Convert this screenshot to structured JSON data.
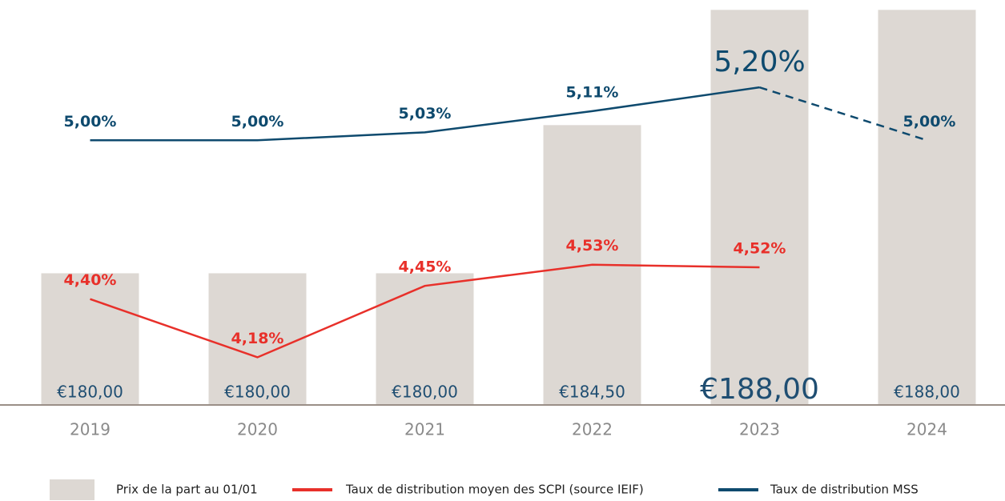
{
  "chart_data": {
    "type": "bar",
    "categories": [
      "2019",
      "2020",
      "2021",
      "2022",
      "2023",
      "2024"
    ],
    "ylim": [
      176,
      188.3
    ],
    "y2lim": [
      4.0,
      5.53
    ],
    "series": [
      {
        "name": "Prix de la part au 01/01",
        "type": "bar",
        "color": "#ddd8d3",
        "values": [
          180.0,
          180.0,
          180.0,
          184.5,
          188.0,
          188.0
        ],
        "value_labels": [
          "€180,00",
          "€180,00",
          "€180,00",
          "€184,50",
          "€188,00",
          "€188,00"
        ]
      },
      {
        "name": "Taux de distribution moyen des SCPI (source IEIF)",
        "type": "line",
        "axis": "y2",
        "color": "#e8302a",
        "values": [
          4.4,
          4.18,
          4.45,
          4.53,
          4.52,
          null
        ],
        "value_labels": [
          "4,40%",
          "4,18%",
          "4,45%",
          "4,53%",
          "4,52%",
          null
        ]
      },
      {
        "name": "Taux de distribution MSS",
        "type": "line",
        "axis": "y2",
        "color": "#0e4a6e",
        "values": [
          5.0,
          5.0,
          5.03,
          5.11,
          5.2,
          5.0
        ],
        "value_labels": [
          "5,00%",
          "5,00%",
          "5,03%",
          "5,11%",
          "5,20%",
          "5,00%"
        ]
      }
    ]
  }
}
